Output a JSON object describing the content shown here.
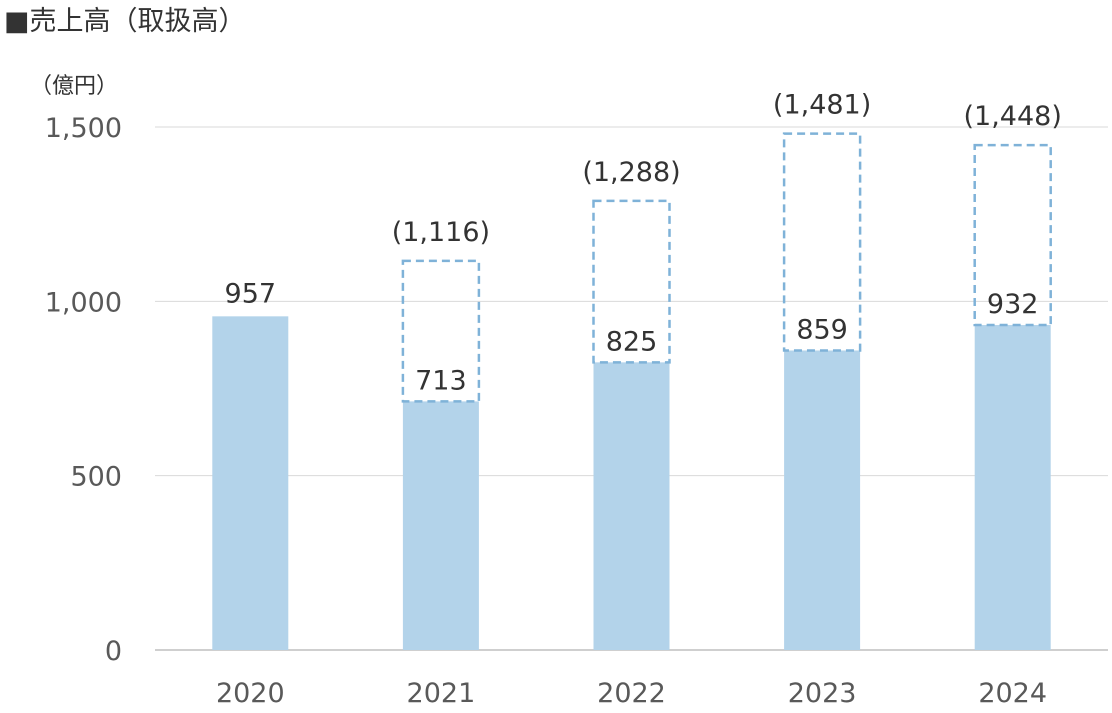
{
  "chart_data": {
    "type": "bar",
    "title": "■売上高（取扱高）",
    "unit_label": "（億円）",
    "categories": [
      "2020",
      "2021",
      "2022",
      "2023",
      "2024"
    ],
    "series": [
      {
        "name": "売上高",
        "values": [
          957,
          713,
          825,
          859,
          932
        ]
      },
      {
        "name": "取扱高",
        "values": [
          null,
          1116,
          1288,
          1481,
          1448
        ]
      }
    ],
    "value_labels": [
      "957",
      "713",
      "825",
      "859",
      "932"
    ],
    "gross_labels": [
      "",
      "(1,116)",
      "(1,288)",
      "(1,481)",
      "(1,448)"
    ],
    "yticks": [
      "0",
      "500",
      "1,000",
      "1,500"
    ],
    "ytick_values": [
      0,
      500,
      1000,
      1500
    ],
    "ylim": [
      0,
      1500
    ],
    "grid": true,
    "legend": "none",
    "colors": {
      "bar": "#b3d3ea",
      "dashed_outline": "#7fb2d8",
      "grid": "#d9d9d9",
      "axis": "#bfbfbf"
    }
  }
}
